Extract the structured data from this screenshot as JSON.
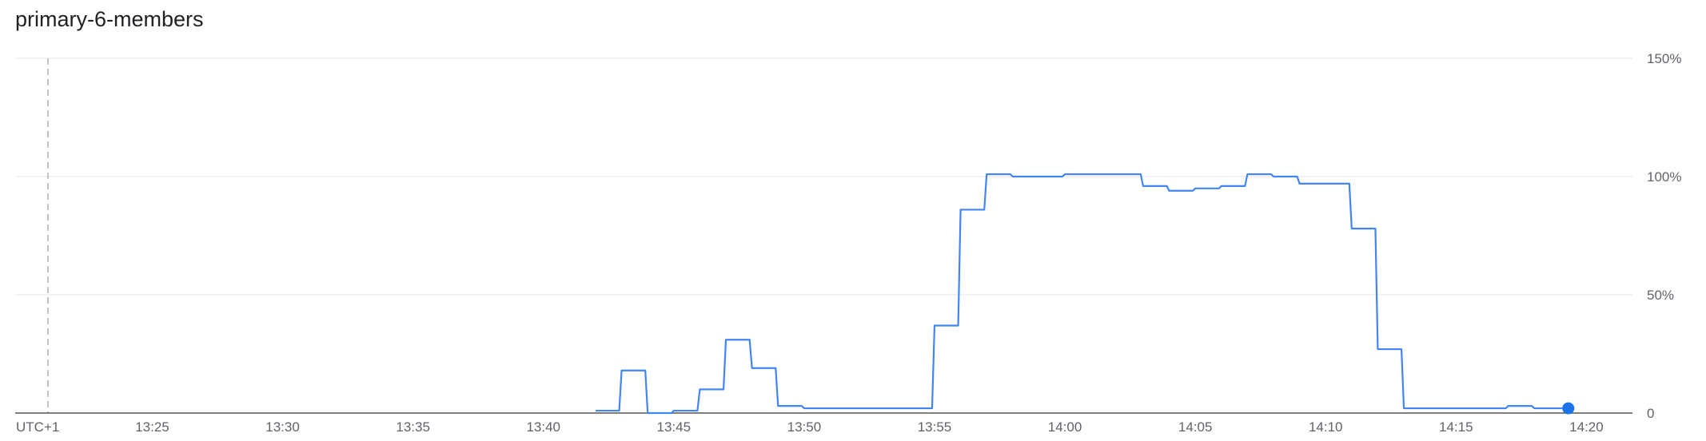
{
  "chart_data": {
    "type": "line",
    "title": "primary-6-members",
    "timezone_label": "UTC+1",
    "x_ticks": [
      "13:25",
      "13:30",
      "13:35",
      "13:40",
      "13:45",
      "13:50",
      "13:55",
      "14:00",
      "14:05",
      "14:10",
      "14:15",
      "14:20"
    ],
    "y_ticks": [
      "0",
      "50%",
      "100%",
      "150%"
    ],
    "ylim": [
      0,
      150
    ],
    "xlim": [
      "13:21",
      "14:21"
    ],
    "y_axis_position": "right",
    "grid": true,
    "line_type": "step",
    "series": [
      {
        "color": "#4285f4",
        "points": [
          {
            "x": "13:42",
            "y": 1
          },
          {
            "x": "13:43",
            "y": 18
          },
          {
            "x": "13:44",
            "y": 0
          },
          {
            "x": "13:45",
            "y": 1
          },
          {
            "x": "13:46",
            "y": 10
          },
          {
            "x": "13:47",
            "y": 31
          },
          {
            "x": "13:48",
            "y": 19
          },
          {
            "x": "13:49",
            "y": 3
          },
          {
            "x": "13:50",
            "y": 2
          },
          {
            "x": "13:51",
            "y": 2
          },
          {
            "x": "13:52",
            "y": 2
          },
          {
            "x": "13:53",
            "y": 2
          },
          {
            "x": "13:54",
            "y": 2
          },
          {
            "x": "13:55",
            "y": 37
          },
          {
            "x": "13:56",
            "y": 86
          },
          {
            "x": "13:57",
            "y": 101
          },
          {
            "x": "13:58",
            "y": 100
          },
          {
            "x": "13:59",
            "y": 100
          },
          {
            "x": "14:00",
            "y": 101
          },
          {
            "x": "14:01",
            "y": 101
          },
          {
            "x": "14:02",
            "y": 101
          },
          {
            "x": "14:03",
            "y": 96
          },
          {
            "x": "14:04",
            "y": 94
          },
          {
            "x": "14:05",
            "y": 95
          },
          {
            "x": "14:06",
            "y": 96
          },
          {
            "x": "14:07",
            "y": 101
          },
          {
            "x": "14:08",
            "y": 100
          },
          {
            "x": "14:09",
            "y": 97
          },
          {
            "x": "14:10",
            "y": 97
          },
          {
            "x": "14:11",
            "y": 78
          },
          {
            "x": "14:12",
            "y": 27
          },
          {
            "x": "14:13",
            "y": 2
          },
          {
            "x": "14:14",
            "y": 2
          },
          {
            "x": "14:15",
            "y": 2
          },
          {
            "x": "14:16",
            "y": 2
          },
          {
            "x": "14:17",
            "y": 3
          },
          {
            "x": "14:18",
            "y": 2
          },
          {
            "x": "14:19",
            "y": 2
          }
        ]
      }
    ]
  },
  "colors": {
    "line": "#4285f4",
    "marker": "#1a73e8",
    "grid": "#e6e6e6",
    "axis": "#5f6368",
    "now_line": "#c4c4c4"
  }
}
